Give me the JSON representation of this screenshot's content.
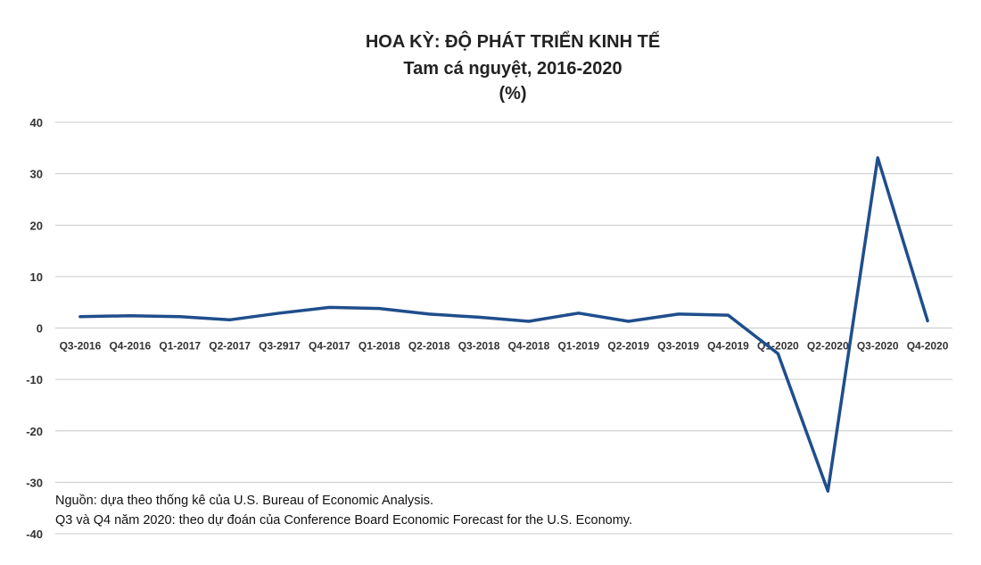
{
  "chart_data": {
    "type": "line",
    "title": "HOA KỲ: ĐỘ PHÁT TRIỂN KINH TẾ",
    "subtitle": "Tam cá nguyệt, 2016-2020",
    "unit": "(%)",
    "xlabel": "",
    "ylabel": "",
    "categories": [
      "Q3-2016",
      "Q4-2016",
      "Q1-2017",
      "Q2-2017",
      "Q3-2917",
      "Q4-2017",
      "Q1-2018",
      "Q2-2018",
      "Q3-2018",
      "Q4-2018",
      "Q1-2019",
      "Q2-2019",
      "Q3-2019",
      "Q4-2019",
      "Q1-2020",
      "Q2-2020",
      "Q3-2020",
      "Q4-2020"
    ],
    "series": [
      {
        "values": [
          2.2,
          2.4,
          2.2,
          1.6,
          2.9,
          4.0,
          3.8,
          2.7,
          2.1,
          1.3,
          2.9,
          1.3,
          2.7,
          2.5,
          -5.0,
          -31.7,
          33.1,
          1.4
        ]
      }
    ],
    "yticks": [
      40,
      30,
      20,
      10,
      0,
      -10,
      -20,
      -30,
      -40
    ],
    "ylim": [
      -40,
      40
    ],
    "grid": true,
    "line_color": "#1f4e8c",
    "notes": [
      "Nguồn: dựa theo thống kê của U.S. Bureau of Economic Analysis.",
      "Q3 và Q4 năm 2020: theo dự đoán của Conference Board Economic Forecast for the U.S. Economy."
    ]
  }
}
